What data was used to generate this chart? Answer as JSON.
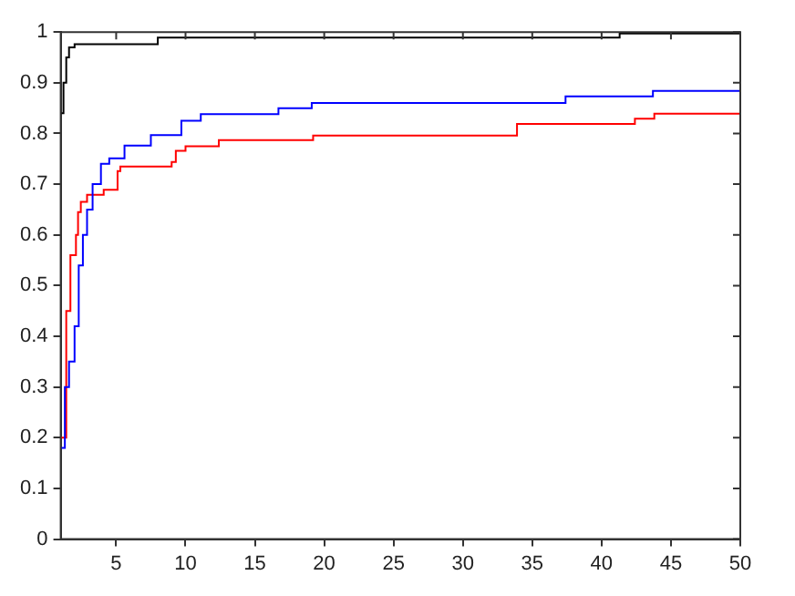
{
  "chart_data": {
    "type": "step",
    "xlim": [
      1,
      50
    ],
    "xticks": [
      5,
      10,
      15,
      20,
      25,
      30,
      35,
      40,
      45,
      50
    ],
    "ylim": [
      0,
      1
    ],
    "yticks": [
      0,
      0.1,
      0.2,
      0.3,
      0.4,
      0.5,
      0.6,
      0.7,
      0.8,
      0.9,
      1
    ],
    "grid": false,
    "legend": false,
    "marker": "none",
    "series": [
      {
        "color": "#000000",
        "x": [
          1,
          1.2,
          1.4,
          1.6,
          2,
          8,
          41.3,
          50
        ],
        "values": [
          0.84,
          0.9,
          0.95,
          0.97,
          0.976,
          0.989,
          0.997,
          0.997
        ]
      },
      {
        "color": "#0000ff",
        "x": [
          1,
          1.3,
          1.6,
          2,
          2.3,
          2.6,
          2.9,
          3.3,
          3.9,
          4.5,
          5.6,
          7.5,
          9.7,
          11.1,
          16.7,
          19.1,
          37.4,
          43.7,
          50
        ],
        "values": [
          0.18,
          0.3,
          0.35,
          0.42,
          0.54,
          0.6,
          0.65,
          0.7,
          0.74,
          0.751,
          0.776,
          0.797,
          0.825,
          0.838,
          0.85,
          0.86,
          0.873,
          0.884,
          0.884
        ]
      },
      {
        "color": "#ff0000",
        "x": [
          1,
          1.4,
          1.7,
          2.1,
          2.25,
          2.45,
          2.9,
          4.1,
          5.1,
          5.3,
          9,
          9.3,
          10,
          12.4,
          19.2,
          33.9,
          42.4,
          43.8,
          50
        ],
        "values": [
          0.2,
          0.45,
          0.56,
          0.6,
          0.645,
          0.665,
          0.679,
          0.689,
          0.726,
          0.735,
          0.744,
          0.766,
          0.775,
          0.787,
          0.796,
          0.819,
          0.829,
          0.839,
          0.839
        ]
      }
    ]
  }
}
